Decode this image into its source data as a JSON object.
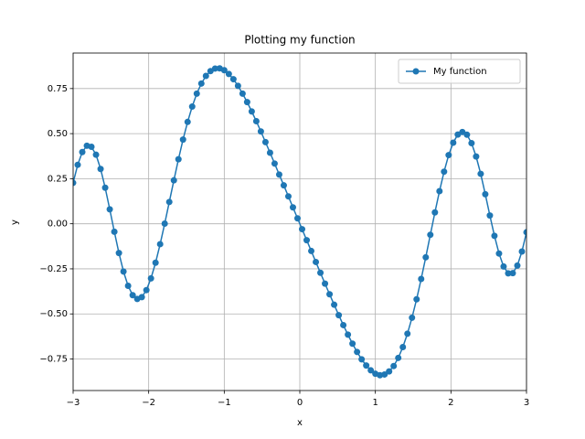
{
  "chart_data": {
    "type": "line",
    "title": "Plotting my function",
    "x_label": "x",
    "y_label": "y",
    "x": [
      -3,
      -2.9394,
      -2.8788,
      -2.8182,
      -2.7576,
      -2.697,
      -2.6364,
      -2.5758,
      -2.5152,
      -2.4545,
      -2.3939,
      -2.3333,
      -2.2727,
      -2.2121,
      -2.1515,
      -2.0909,
      -2.0303,
      -1.9697,
      -1.9091,
      -1.8485,
      -1.7879,
      -1.7273,
      -1.6667,
      -1.6061,
      -1.5455,
      -1.4848,
      -1.4242,
      -1.3636,
      -1.303,
      -1.2424,
      -1.1818,
      -1.1212,
      -1.0606,
      -1,
      -0.9394,
      -0.8788,
      -0.8182,
      -0.7576,
      -0.697,
      -0.6364,
      -0.5758,
      -0.5152,
      -0.4545,
      -0.3939,
      -0.3333,
      -0.2727,
      -0.2121,
      -0.1515,
      -0.0909,
      -0.0303,
      0.0303,
      0.0909,
      0.1515,
      0.2121,
      0.2727,
      0.3333,
      0.3939,
      0.4545,
      0.5152,
      0.5758,
      0.6364,
      0.697,
      0.7576,
      0.8182,
      0.8788,
      0.9394,
      1,
      1.0606,
      1.1212,
      1.1818,
      1.2424,
      1.303,
      1.3636,
      1.4242,
      1.4848,
      1.5455,
      1.6061,
      1.6667,
      1.7273,
      1.7879,
      1.8485,
      1.9091,
      1.9697,
      2.0303,
      2.0909,
      2.1515,
      2.2121,
      2.2727,
      2.3333,
      2.3939,
      2.4545,
      2.5152,
      2.5758,
      2.6364,
      2.697,
      2.7576,
      2.8182,
      2.8788,
      2.9394,
      3
    ],
    "series": [
      {
        "name": "My function",
        "color": "#1f77b4",
        "values": [
          0.227,
          0.327,
          0.398,
          0.433,
          0.427,
          0.383,
          0.304,
          0.2,
          0.08,
          -0.044,
          -0.162,
          -0.265,
          -0.344,
          -0.396,
          -0.417,
          -0.407,
          -0.368,
          -0.303,
          -0.216,
          -0.113,
          0.001,
          0.121,
          0.241,
          0.358,
          0.467,
          0.565,
          0.65,
          0.722,
          0.778,
          0.82,
          0.847,
          0.861,
          0.862,
          0.852,
          0.831,
          0.802,
          0.765,
          0.722,
          0.675,
          0.623,
          0.569,
          0.512,
          0.453,
          0.394,
          0.334,
          0.273,
          0.213,
          0.152,
          0.091,
          0.03,
          -0.03,
          -0.091,
          -0.151,
          -0.212,
          -0.272,
          -0.332,
          -0.391,
          -0.449,
          -0.507,
          -0.562,
          -0.615,
          -0.665,
          -0.711,
          -0.752,
          -0.786,
          -0.813,
          -0.832,
          -0.84,
          -0.836,
          -0.819,
          -0.789,
          -0.744,
          -0.684,
          -0.61,
          -0.521,
          -0.419,
          -0.306,
          -0.186,
          -0.061,
          0.063,
          0.181,
          0.289,
          0.381,
          0.45,
          0.495,
          0.509,
          0.494,
          0.447,
          0.373,
          0.277,
          0.164,
          0.046,
          -0.067,
          -0.165,
          -0.237,
          -0.275,
          -0.274,
          -0.232,
          -0.154,
          -0.047
        ]
      }
    ],
    "xlim": [
      -3,
      3
    ],
    "xticks": [
      {
        "value": -3,
        "label": "−3"
      },
      {
        "value": -2,
        "label": "−2"
      },
      {
        "value": -1,
        "label": "−1"
      },
      0,
      1,
      2,
      3
    ],
    "ylim": [
      -0.925,
      0.947
    ],
    "yticks": [
      {
        "value": -0.75,
        "label": "−0.75"
      },
      {
        "value": -0.5,
        "label": "−0.50"
      },
      {
        "value": -0.25,
        "label": "−0.25"
      },
      {
        "value": 0,
        "label": "0.00"
      },
      {
        "value": 0.25,
        "label": "0.25"
      },
      {
        "value": 0.5,
        "label": "0.50"
      },
      {
        "value": 0.75,
        "label": "0.75"
      }
    ],
    "grid": true,
    "legend": "upper right",
    "markers": true
  }
}
